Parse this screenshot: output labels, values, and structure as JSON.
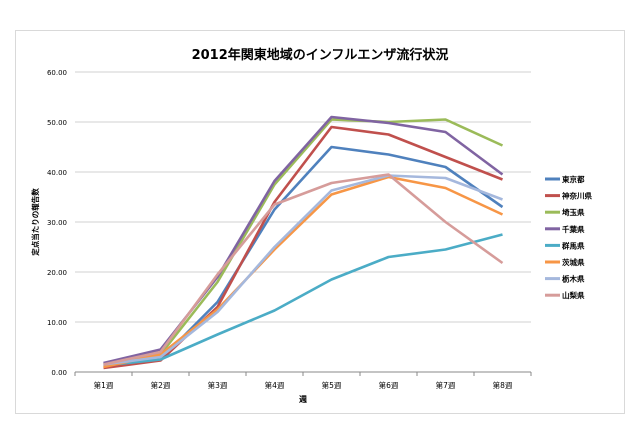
{
  "chart_data": {
    "type": "line",
    "title": "2012年関東地域のインフルエンザ流行状況",
    "xlabel": "週",
    "ylabel": "定点当たりの報告数",
    "ylim": [
      0,
      60
    ],
    "yticks": [
      "0.00",
      "10.00",
      "20.00",
      "30.00",
      "40.00",
      "50.00",
      "60.00"
    ],
    "grid": true,
    "legend_position": "right",
    "categories": [
      "第1週",
      "第2週",
      "第3週",
      "第4週",
      "第5週",
      "第6週",
      "第7週",
      "第8週"
    ],
    "series": [
      {
        "name": "東京都",
        "color": "#4f81bd",
        "values": [
          1.2,
          2.5,
          14,
          32.5,
          45,
          43.5,
          41,
          33
        ]
      },
      {
        "name": "神奈川県",
        "color": "#c0504d",
        "values": [
          0.8,
          2.3,
          13,
          34,
          49,
          47.5,
          43,
          38.5
        ]
      },
      {
        "name": "埼玉県",
        "color": "#9bbb59",
        "values": [
          1.5,
          3.5,
          18,
          37.5,
          50.5,
          50,
          50.5,
          45.3
        ]
      },
      {
        "name": "千葉県",
        "color": "#8064a2",
        "values": [
          1.8,
          4.5,
          19,
          38.2,
          51,
          49.8,
          48,
          39.5
        ]
      },
      {
        "name": "群馬県",
        "color": "#4bacc6",
        "values": [
          1.3,
          2.5,
          7.5,
          12.3,
          18.5,
          23,
          24.5,
          27.5
        ]
      },
      {
        "name": "茨城県",
        "color": "#f79646",
        "values": [
          1.0,
          3.5,
          12.5,
          24.5,
          35.5,
          39,
          36.8,
          31.5
        ]
      },
      {
        "name": "栃木県",
        "color": "#a5b8dd",
        "values": [
          1.5,
          3.0,
          12,
          25,
          36.3,
          39.3,
          38.8,
          34.5
        ]
      },
      {
        "name": "山梨県",
        "color": "#d69c9a",
        "values": [
          1.5,
          4.0,
          19.5,
          33.5,
          37.8,
          39.5,
          30,
          21.8
        ]
      }
    ]
  }
}
